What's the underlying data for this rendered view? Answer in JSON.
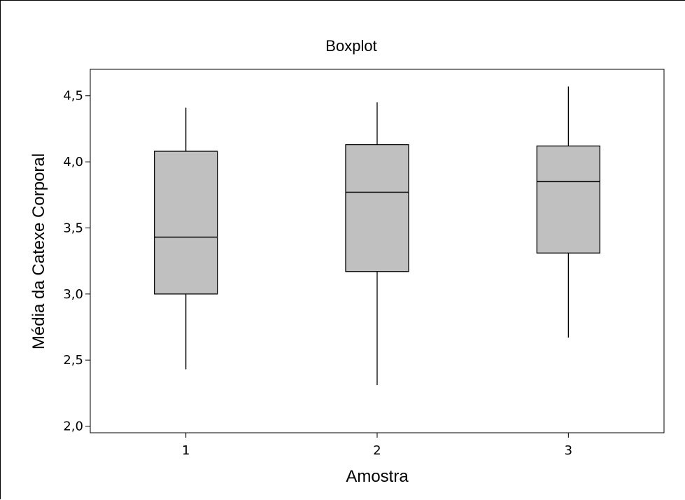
{
  "chart_data": {
    "type": "boxplot",
    "title": "Boxplot",
    "xlabel": "Amostra",
    "ylabel": "Média da Catexe Corporal",
    "ylim": [
      1.95,
      4.7
    ],
    "yticks": [
      "2,0",
      "2,5",
      "3,0",
      "3,5",
      "4,0",
      "4,5"
    ],
    "ytick_values": [
      2.0,
      2.5,
      3.0,
      3.5,
      4.0,
      4.5
    ],
    "categories": [
      "1",
      "2",
      "3"
    ],
    "boxes": [
      {
        "min": 2.43,
        "q1": 3.0,
        "median": 3.43,
        "q3": 4.08,
        "max": 4.41
      },
      {
        "min": 2.31,
        "q1": 3.17,
        "median": 3.77,
        "q3": 4.13,
        "max": 4.45
      },
      {
        "min": 2.67,
        "q1": 3.31,
        "median": 3.85,
        "q3": 4.12,
        "max": 4.57
      }
    ],
    "box_fill": "#c0c0c0",
    "line_color": "#000000",
    "grid": false
  }
}
